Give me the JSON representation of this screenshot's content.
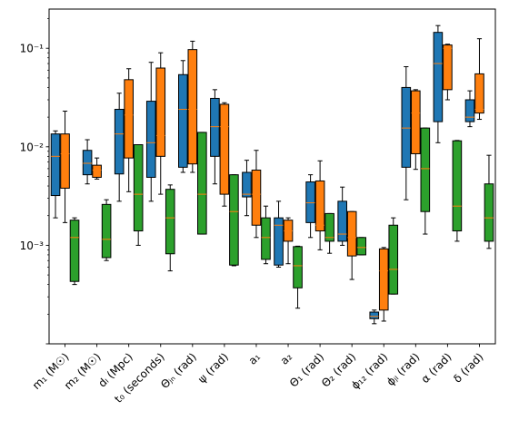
{
  "chart_data": {
    "type": "box",
    "yscale": "log",
    "ylim": [
      0.0001,
      0.25
    ],
    "y_ticks": [
      {
        "value": 0.001,
        "label": "10⁻³"
      },
      {
        "value": 0.01,
        "label": "10⁻²"
      },
      {
        "value": 0.1,
        "label": "10⁻¹"
      }
    ],
    "categories": [
      "m₁ (M☉)",
      "m₂ (M☉)",
      "dₗ (Mpc)",
      "t₀ (seconds)",
      "Θⱼₙ (rad)",
      "ψ (rad)",
      "a₁",
      "a₂",
      "Θ₁ (rad)",
      "Θ₂ (rad)",
      "ϕ₁₂ (rad)",
      "ϕⱼₗ (rad)",
      "α (rad)",
      "δ (rad)"
    ],
    "series": [
      {
        "color": "#1f77b4",
        "boxes": [
          {
            "whislo": 0.0019,
            "q1": 0.0032,
            "med": 0.008,
            "q3": 0.0135,
            "whishi": 0.0145
          },
          {
            "whislo": 0.0042,
            "q1": 0.0052,
            "med": 0.0068,
            "q3": 0.0092,
            "whishi": 0.0118
          },
          {
            "whislo": 0.0028,
            "q1": 0.0053,
            "med": 0.0135,
            "q3": 0.024,
            "whishi": 0.035
          },
          {
            "whislo": 0.0028,
            "q1": 0.0049,
            "med": 0.011,
            "q3": 0.029,
            "whishi": 0.072
          },
          {
            "whislo": 0.0055,
            "q1": 0.0062,
            "med": 0.024,
            "q3": 0.054,
            "whishi": 0.075
          },
          {
            "whislo": 0.0042,
            "q1": 0.008,
            "med": 0.016,
            "q3": 0.031,
            "whishi": 0.038
          },
          {
            "whislo": 0.002,
            "q1": 0.0031,
            "med": 0.0033,
            "q3": 0.0055,
            "whishi": 0.0073
          },
          {
            "whislo": 0.0006,
            "q1": 0.00063,
            "med": 0.0016,
            "q3": 0.0019,
            "whishi": 0.0028
          },
          {
            "whislo": 0.0012,
            "q1": 0.0017,
            "med": 0.0027,
            "q3": 0.0044,
            "whishi": 0.0052
          },
          {
            "whislo": 0.001,
            "q1": 0.0011,
            "med": 0.0013,
            "q3": 0.0028,
            "whishi": 0.0039
          },
          {
            "whislo": 0.00016,
            "q1": 0.00018,
            "med": 0.00019,
            "q3": 0.00021,
            "whishi": 0.00022
          },
          {
            "whislo": 0.0029,
            "q1": 0.0062,
            "med": 0.0155,
            "q3": 0.04,
            "whishi": 0.065
          },
          {
            "whislo": 0.011,
            "q1": 0.018,
            "med": 0.07,
            "q3": 0.145,
            "whishi": 0.17
          },
          {
            "whislo": 0.016,
            "q1": 0.018,
            "med": 0.02,
            "q3": 0.03,
            "whishi": 0.037
          }
        ]
      },
      {
        "color": "#ff7f0e",
        "boxes": [
          {
            "whislo": 0.0017,
            "q1": 0.0038,
            "med": 0.0085,
            "q3": 0.0135,
            "whishi": 0.023
          },
          {
            "whislo": 0.0047,
            "q1": 0.0049,
            "med": 0.0058,
            "q3": 0.0065,
            "whishi": 0.0077
          },
          {
            "whislo": 0.0035,
            "q1": 0.0077,
            "med": 0.021,
            "q3": 0.048,
            "whishi": 0.062
          },
          {
            "whislo": 0.0033,
            "q1": 0.008,
            "med": 0.013,
            "q3": 0.063,
            "whishi": 0.09
          },
          {
            "whislo": 0.0055,
            "q1": 0.0067,
            "med": 0.024,
            "q3": 0.097,
            "whishi": 0.118
          },
          {
            "whislo": 0.0025,
            "q1": 0.0033,
            "med": 0.016,
            "q3": 0.027,
            "whishi": 0.028
          },
          {
            "whislo": 0.0012,
            "q1": 0.0016,
            "med": 0.0033,
            "q3": 0.0058,
            "whishi": 0.0092
          },
          {
            "whislo": 0.00065,
            "q1": 0.0011,
            "med": 0.0014,
            "q3": 0.0018,
            "whishi": 0.0019
          },
          {
            "whislo": 0.0009,
            "q1": 0.0014,
            "med": 0.0016,
            "q3": 0.0045,
            "whishi": 0.0072
          },
          {
            "whislo": 0.00045,
            "q1": 0.00078,
            "med": 0.0012,
            "q3": 0.0022,
            "whishi": 0.0022
          },
          {
            "whislo": 0.00017,
            "q1": 0.00022,
            "med": 0.00055,
            "q3": 0.00092,
            "whishi": 0.00095
          },
          {
            "whislo": 0.0059,
            "q1": 0.0085,
            "med": 0.022,
            "q3": 0.037,
            "whishi": 0.038
          },
          {
            "whislo": 0.03,
            "q1": 0.038,
            "med": 0.1,
            "q3": 0.108,
            "whishi": 0.11
          },
          {
            "whislo": 0.019,
            "q1": 0.022,
            "med": 0.024,
            "q3": 0.055,
            "whishi": 0.125
          }
        ]
      },
      {
        "color": "#2ca02c",
        "boxes": [
          {
            "whislo": 0.0004,
            "q1": 0.00043,
            "med": 0.0012,
            "q3": 0.0018,
            "whishi": 0.0019
          },
          {
            "whislo": 0.0007,
            "q1": 0.00075,
            "med": 0.00115,
            "q3": 0.0026,
            "whishi": 0.0029
          },
          {
            "whislo": 0.001,
            "q1": 0.0014,
            "med": 0.0033,
            "q3": 0.0105,
            "whishi": 0.0105
          },
          {
            "whislo": 0.00055,
            "q1": 0.00082,
            "med": 0.0019,
            "q3": 0.0037,
            "whishi": 0.0041
          },
          {
            "whislo": 0.0013,
            "q1": 0.0013,
            "med": 0.0033,
            "q3": 0.014,
            "whishi": 0.014
          },
          {
            "whislo": 0.00062,
            "q1": 0.00063,
            "med": 0.0022,
            "q3": 0.0052,
            "whishi": 0.0052
          },
          {
            "whislo": 0.00065,
            "q1": 0.00072,
            "med": 0.0012,
            "q3": 0.0019,
            "whishi": 0.0025
          },
          {
            "whislo": 0.00023,
            "q1": 0.00037,
            "med": 0.00062,
            "q3": 0.00097,
            "whishi": 0.00098
          },
          {
            "whislo": 0.00083,
            "q1": 0.0011,
            "med": 0.0012,
            "q3": 0.0021,
            "whishi": 0.0021
          },
          {
            "whislo": 0.0008,
            "q1": 0.0008,
            "med": 0.00095,
            "q3": 0.0012,
            "whishi": 0.0012
          },
          {
            "whislo": 0.00032,
            "q1": 0.00032,
            "med": 0.00057,
            "q3": 0.0016,
            "whishi": 0.0019
          },
          {
            "whislo": 0.0013,
            "q1": 0.0022,
            "med": 0.006,
            "q3": 0.0155,
            "whishi": 0.0155
          },
          {
            "whislo": 0.0011,
            "q1": 0.0014,
            "med": 0.0025,
            "q3": 0.0115,
            "whishi": 0.0116
          },
          {
            "whislo": 0.00093,
            "q1": 0.0011,
            "med": 0.0019,
            "q3": 0.0042,
            "whishi": 0.0082
          }
        ]
      }
    ]
  }
}
